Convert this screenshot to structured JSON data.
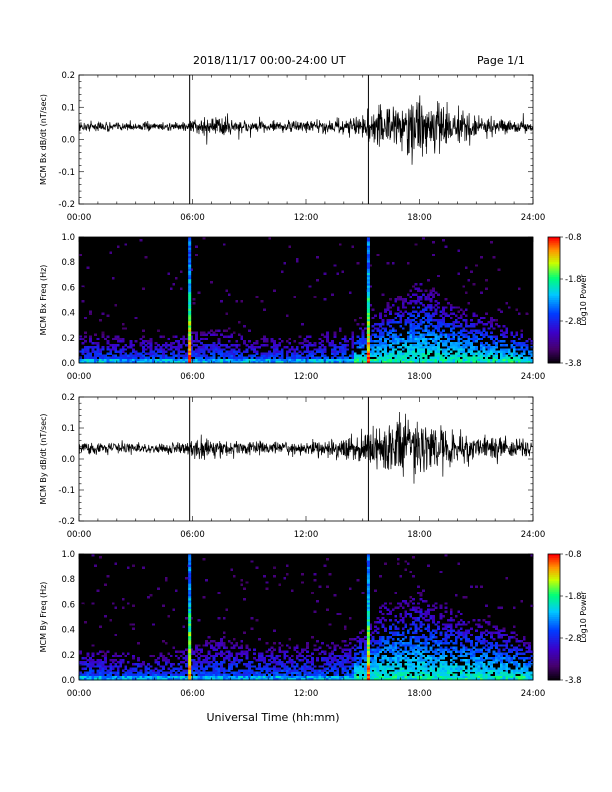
{
  "header": {
    "date_range": "2018/11/17  00:00-24:00 UT",
    "page": "Page 1/1"
  },
  "x_axis_title": "Universal Time (hh:mm)",
  "colors": {
    "background": "#ffffff",
    "trace": "#000000",
    "spectrogram_background": "#000000"
  },
  "chart_data": [
    {
      "id": "bx-dbdt",
      "type": "line",
      "ylabel": "MCM Bx dB/dt (nT/sec)",
      "xlim": [
        0,
        24
      ],
      "ylim": [
        -0.2,
        0.2
      ],
      "xticks": [
        "00:00",
        "06:00",
        "12:00",
        "18:00",
        "24:00"
      ],
      "yticks": [
        "0.2",
        "0.1",
        "0.0",
        "-0.1",
        "-0.2"
      ],
      "baseline": 0.04,
      "spikes_hours": [
        5.85,
        15.3
      ],
      "noise_envelope": {
        "x": [
          0,
          2,
          4,
          5.5,
          6.5,
          7.5,
          8.5,
          10,
          12,
          13.5,
          14.5,
          15.3,
          16,
          17,
          18,
          19,
          20,
          21,
          22,
          23,
          24
        ],
        "amplitude": [
          0.012,
          0.012,
          0.011,
          0.012,
          0.022,
          0.035,
          0.02,
          0.014,
          0.015,
          0.018,
          0.028,
          0.04,
          0.05,
          0.07,
          0.08,
          0.06,
          0.04,
          0.03,
          0.022,
          0.016,
          0.013
        ]
      }
    },
    {
      "id": "bx-freq",
      "type": "heatmap",
      "ylabel": "MCM Bx Freq (Hz)",
      "colorbar_label": "Log10 Power",
      "colorbar_ticks": [
        "-0.8",
        "-1.8",
        "-2.8",
        "-3.8"
      ],
      "color_range": [
        -3.8,
        -0.8
      ],
      "xlim": [
        0,
        24
      ],
      "ylim": [
        0,
        1.0
      ],
      "xticks": [
        "00:00",
        "06:00",
        "12:00",
        "18:00",
        "24:00"
      ],
      "yticks": [
        "1.0",
        "0.8",
        "0.6",
        "0.4",
        "0.2",
        "0.0"
      ],
      "broadband_hours": [
        5.85,
        15.3
      ],
      "activity_envelope": {
        "x": [
          0,
          2,
          4,
          5.5,
          6.5,
          7.5,
          9,
          11,
          13,
          14.5,
          15.3,
          16,
          17,
          18,
          19,
          20,
          21,
          22,
          23,
          24
        ],
        "top_hz": [
          0.25,
          0.22,
          0.2,
          0.25,
          0.25,
          0.28,
          0.2,
          0.2,
          0.25,
          0.3,
          0.35,
          0.45,
          0.55,
          0.65,
          0.55,
          0.45,
          0.4,
          0.35,
          0.3,
          0.2
        ]
      }
    },
    {
      "id": "by-dbdt",
      "type": "line",
      "ylabel": "MCM By dB/dt (nT/sec)",
      "xlim": [
        0,
        24
      ],
      "ylim": [
        -0.2,
        0.2
      ],
      "xticks": [
        "00:00",
        "06:00",
        "12:00",
        "18:00",
        "24:00"
      ],
      "yticks": [
        "0.2",
        "0.1",
        "0.0",
        "-0.1",
        "-0.2"
      ],
      "baseline": 0.035,
      "spikes_hours": [
        5.85,
        15.3
      ],
      "noise_envelope": {
        "x": [
          0,
          2,
          4,
          5.5,
          6.5,
          7.5,
          8.5,
          10,
          12,
          13.5,
          14.5,
          15.3,
          16,
          17,
          18,
          19,
          20,
          21,
          22,
          23,
          24
        ],
        "amplitude": [
          0.016,
          0.016,
          0.015,
          0.016,
          0.03,
          0.025,
          0.02,
          0.018,
          0.02,
          0.025,
          0.035,
          0.05,
          0.07,
          0.09,
          0.08,
          0.06,
          0.045,
          0.04,
          0.035,
          0.03,
          0.025
        ]
      }
    },
    {
      "id": "by-freq",
      "type": "heatmap",
      "ylabel": "MCM By Freq (Hz)",
      "colorbar_label": "Log10 Power",
      "colorbar_ticks": [
        "-0.8",
        "-1.8",
        "-2.8",
        "-3.8"
      ],
      "color_range": [
        -3.8,
        -0.8
      ],
      "xlim": [
        0,
        24
      ],
      "ylim": [
        0,
        1.0
      ],
      "xticks": [
        "00:00",
        "06:00",
        "12:00",
        "18:00",
        "24:00"
      ],
      "yticks": [
        "1.0",
        "0.8",
        "0.6",
        "0.4",
        "0.2",
        "0.0"
      ],
      "broadband_hours": [
        5.85,
        15.3
      ],
      "activity_envelope": {
        "x": [
          0,
          2,
          4,
          5.5,
          6.5,
          7.5,
          9,
          11,
          13,
          14.5,
          15.3,
          16,
          17,
          18,
          19,
          20,
          21,
          22,
          23,
          24
        ],
        "top_hz": [
          0.25,
          0.22,
          0.2,
          0.25,
          0.3,
          0.35,
          0.3,
          0.3,
          0.3,
          0.35,
          0.45,
          0.6,
          0.65,
          0.7,
          0.6,
          0.55,
          0.5,
          0.45,
          0.4,
          0.3
        ]
      }
    }
  ]
}
